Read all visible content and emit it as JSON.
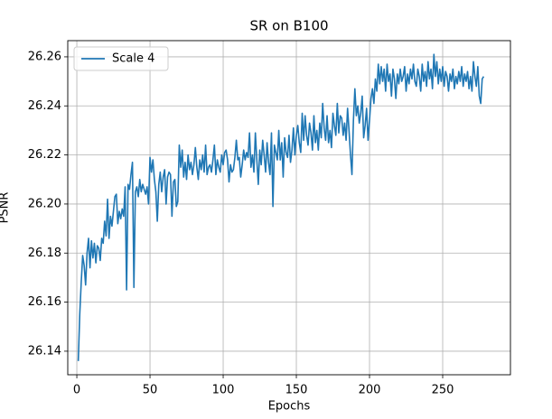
{
  "chart_data": {
    "type": "line",
    "title": "SR on B100",
    "xlabel": "Epochs",
    "ylabel": "PSNR",
    "x": [
      1,
      2,
      3,
      4,
      5,
      6,
      7,
      8,
      9,
      10,
      11,
      12,
      13,
      14,
      15,
      16,
      17,
      18,
      19,
      20,
      21,
      22,
      23,
      24,
      25,
      26,
      27,
      28,
      29,
      30,
      31,
      32,
      33,
      34,
      35,
      36,
      37,
      38,
      39,
      40,
      41,
      42,
      43,
      44,
      45,
      46,
      47,
      48,
      49,
      50,
      51,
      52,
      53,
      54,
      55,
      56,
      57,
      58,
      59,
      60,
      61,
      62,
      63,
      64,
      65,
      66,
      67,
      68,
      69,
      70,
      71,
      72,
      73,
      74,
      75,
      76,
      77,
      78,
      79,
      80,
      81,
      82,
      83,
      84,
      85,
      86,
      87,
      88,
      89,
      90,
      91,
      92,
      93,
      94,
      95,
      96,
      97,
      98,
      99,
      100,
      101,
      102,
      103,
      104,
      105,
      106,
      107,
      108,
      109,
      110,
      111,
      112,
      113,
      114,
      115,
      116,
      117,
      118,
      119,
      120,
      121,
      122,
      123,
      124,
      125,
      126,
      127,
      128,
      129,
      130,
      131,
      132,
      133,
      134,
      135,
      136,
      137,
      138,
      139,
      140,
      141,
      142,
      143,
      144,
      145,
      146,
      147,
      148,
      149,
      150,
      151,
      152,
      153,
      154,
      155,
      156,
      157,
      158,
      159,
      160,
      161,
      162,
      163,
      164,
      165,
      166,
      167,
      168,
      169,
      170,
      171,
      172,
      173,
      174,
      175,
      176,
      177,
      178,
      179,
      180,
      181,
      182,
      183,
      184,
      185,
      186,
      187,
      188,
      189,
      190,
      191,
      192,
      193,
      194,
      195,
      196,
      197,
      198,
      199,
      200,
      201,
      202,
      203,
      204,
      205,
      206,
      207,
      208,
      209,
      210,
      211,
      212,
      213,
      214,
      215,
      216,
      217,
      218,
      219,
      220,
      221,
      222,
      223,
      224,
      225,
      226,
      227,
      228,
      229,
      230,
      231,
      232,
      233,
      234,
      235,
      236,
      237,
      238,
      239,
      240,
      241,
      242,
      243,
      244,
      245,
      246,
      247,
      248,
      249,
      250,
      251,
      252,
      253,
      254,
      255,
      256,
      257,
      258,
      259,
      260,
      261,
      262,
      263,
      264,
      265,
      266,
      267,
      268,
      269,
      270,
      271,
      272,
      273,
      274,
      275,
      276,
      277,
      278
    ],
    "series": [
      {
        "name": "Scale 4",
        "color": "#1f77b4",
        "values": [
          26.136,
          26.155,
          26.168,
          26.179,
          26.175,
          26.167,
          26.18,
          26.186,
          26.174,
          26.185,
          26.178,
          26.184,
          26.176,
          26.183,
          26.182,
          26.177,
          26.186,
          26.184,
          26.193,
          26.187,
          26.202,
          26.186,
          26.195,
          26.191,
          26.197,
          26.203,
          26.204,
          26.192,
          26.197,
          26.194,
          26.198,
          26.195,
          26.207,
          26.165,
          26.208,
          26.206,
          26.212,
          26.217,
          26.166,
          26.205,
          26.207,
          26.203,
          26.21,
          26.205,
          26.208,
          26.206,
          26.204,
          26.207,
          26.2,
          26.219,
          26.213,
          26.218,
          26.21,
          26.205,
          26.193,
          26.208,
          26.213,
          26.205,
          26.211,
          26.214,
          26.2,
          26.211,
          26.213,
          26.212,
          26.195,
          26.209,
          26.21,
          26.199,
          26.201,
          26.224,
          26.215,
          26.222,
          26.211,
          26.217,
          26.21,
          26.22,
          26.214,
          26.217,
          26.212,
          26.216,
          26.223,
          26.215,
          26.21,
          26.218,
          26.214,
          26.22,
          26.213,
          26.224,
          26.212,
          26.215,
          26.216,
          26.213,
          26.218,
          26.224,
          26.212,
          26.218,
          26.215,
          26.213,
          26.22,
          26.216,
          26.221,
          26.222,
          26.218,
          26.209,
          26.216,
          26.213,
          26.214,
          26.219,
          26.226,
          26.218,
          26.219,
          26.211,
          26.216,
          26.222,
          26.218,
          26.221,
          26.219,
          26.229,
          26.215,
          26.22,
          26.213,
          26.229,
          26.218,
          26.208,
          26.222,
          26.216,
          26.226,
          26.22,
          26.213,
          26.225,
          26.217,
          26.212,
          26.229,
          26.199,
          26.224,
          26.221,
          26.218,
          26.23,
          26.218,
          26.225,
          26.211,
          26.227,
          26.221,
          26.219,
          26.228,
          26.217,
          26.222,
          26.231,
          26.22,
          26.228,
          26.232,
          26.225,
          26.221,
          26.237,
          26.226,
          26.236,
          26.228,
          26.224,
          26.233,
          26.229,
          26.222,
          26.236,
          26.225,
          26.23,
          26.222,
          26.233,
          26.227,
          26.241,
          26.231,
          26.226,
          26.236,
          26.225,
          26.23,
          26.223,
          26.237,
          26.232,
          26.228,
          26.241,
          26.229,
          26.236,
          26.235,
          26.228,
          26.233,
          26.226,
          26.239,
          26.23,
          26.22,
          26.212,
          26.234,
          26.247,
          26.236,
          26.24,
          26.233,
          26.237,
          26.244,
          26.227,
          26.232,
          26.239,
          26.226,
          26.234,
          26.243,
          26.247,
          26.241,
          26.251,
          26.246,
          26.257,
          26.249,
          26.256,
          26.25,
          26.255,
          26.246,
          26.257,
          26.25,
          26.253,
          26.244,
          26.255,
          26.251,
          26.243,
          26.253,
          26.249,
          26.255,
          26.25,
          26.252,
          26.256,
          26.246,
          26.253,
          26.249,
          26.255,
          26.251,
          26.257,
          26.25,
          26.248,
          26.255,
          26.252,
          26.246,
          26.257,
          26.25,
          26.254,
          26.248,
          26.258,
          26.251,
          26.255,
          26.247,
          26.261,
          26.252,
          26.258,
          26.249,
          26.255,
          26.25,
          26.256,
          26.248,
          26.254,
          26.252,
          26.246,
          26.253,
          26.25,
          26.255,
          26.247,
          26.252,
          26.249,
          26.254,
          26.25,
          26.256,
          26.248,
          26.253,
          26.25,
          26.254,
          26.247,
          26.252,
          26.246,
          26.258,
          26.252,
          26.248,
          26.256,
          26.244,
          26.241,
          26.251,
          26.252
        ]
      }
    ],
    "xlim": [
      -6.2,
      296.3
    ],
    "ylim": [
      26.1304,
      26.2666
    ],
    "xticks": [
      0,
      50,
      100,
      150,
      200,
      250
    ],
    "yticks": [
      26.14,
      26.16,
      26.18,
      {
        "value": 26.2,
        "label": "26.20"
      },
      26.22,
      26.24,
      26.26
    ],
    "grid": true,
    "legend": "upper-left"
  }
}
